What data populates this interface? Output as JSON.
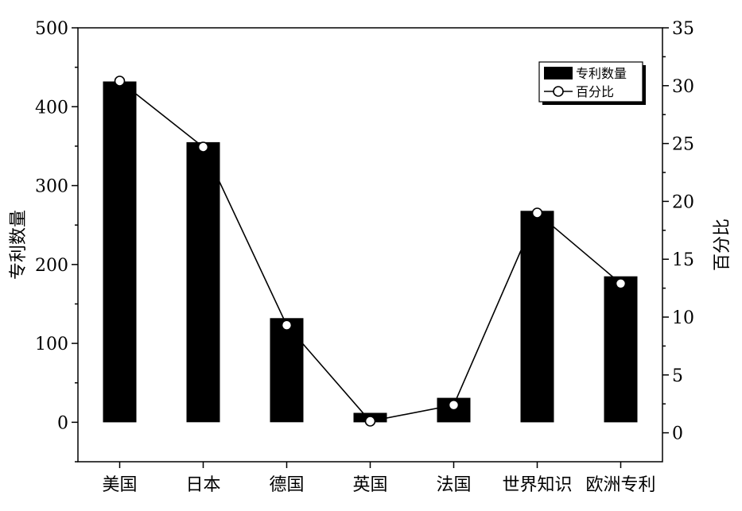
{
  "chart_data": {
    "type": "bar",
    "title": "",
    "categories": [
      "美国",
      "日本",
      "德国",
      "英国",
      "法国",
      "世界知识",
      "欧洲专利"
    ],
    "series": [
      {
        "name": "专利数量",
        "type": "bar",
        "axis": "left",
        "color": "#000000",
        "values": [
          432,
          355,
          132,
          12,
          31,
          268,
          185
        ]
      },
      {
        "name": "百分比",
        "type": "line",
        "axis": "right",
        "color": "#000000",
        "marker": "open-circle",
        "values": [
          30.4,
          24.7,
          9.3,
          1.0,
          2.4,
          19.0,
          12.9
        ]
      }
    ],
    "y_left": {
      "label": "专利数量",
      "min": -50,
      "max": 500,
      "ticks": [
        0,
        100,
        200,
        300,
        400,
        500
      ],
      "tick_labels": [
        "0",
        "100",
        "200",
        "300",
        "400",
        "500"
      ]
    },
    "y_right": {
      "label": "百分比",
      "min": -2.5,
      "max": 35,
      "ticks": [
        0,
        5,
        10,
        15,
        20,
        25,
        30,
        35
      ],
      "tick_labels": [
        "0",
        "5",
        "10",
        "15",
        "20",
        "25",
        "30",
        "35"
      ]
    },
    "xlabel": "",
    "grid": false,
    "legend_position": "top-right",
    "legend": [
      "专利数量",
      "百分比"
    ]
  }
}
